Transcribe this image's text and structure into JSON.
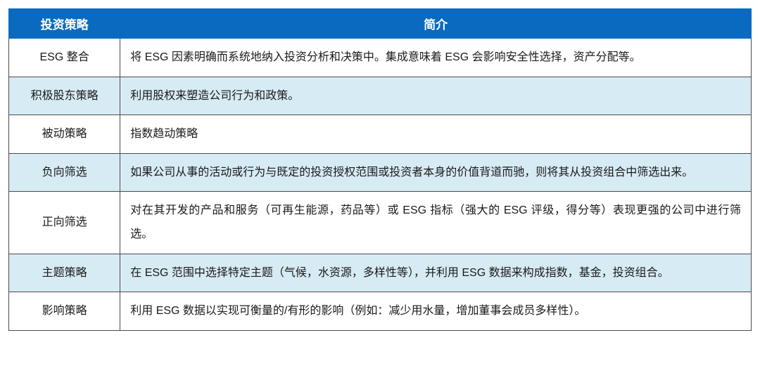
{
  "table": {
    "type": "table",
    "header_bg": "#0a6abf",
    "header_fg": "#ffffff",
    "alt_row_bg": "#d7ebf4",
    "border_color": "#4b4b4b",
    "font_size_pt": 16,
    "line_height": 2.1,
    "columns": [
      {
        "key": "strategy",
        "label": "投资策略",
        "width_pct": 15,
        "align": "center"
      },
      {
        "key": "desc",
        "label": "简介",
        "width_pct": 85,
        "align": "justify"
      }
    ],
    "rows": [
      {
        "alt": false,
        "strategy": "ESG 整合",
        "desc": "将 ESG 因素明确而系统地纳入投资分析和决策中。集成意味着 ESG 会影响安全性选择，资产分配等。"
      },
      {
        "alt": true,
        "strategy": "积极股东策略",
        "desc": "利用股权来塑造公司行为和政策。"
      },
      {
        "alt": false,
        "strategy": "被动策略",
        "desc": "指数趋动策略"
      },
      {
        "alt": true,
        "strategy": "负向筛选",
        "desc": "如果公司从事的活动或行为与既定的投资授权范围或投资者本身的价值背道而驰，则将其从投资组合中筛选出来。"
      },
      {
        "alt": false,
        "strategy": "正向筛选",
        "desc": "对在其开发的产品和服务（可再生能源，药品等）或 ESG 指标（强大的 ESG 评级，得分等）表现更强的公司中进行筛选。"
      },
      {
        "alt": true,
        "strategy": "主题策略",
        "desc": "在 ESG 范围中选择特定主题（气候，水资源，多样性等），并利用 ESG 数据来构成指数，基金，投资组合。"
      },
      {
        "alt": false,
        "strategy": "影响策略",
        "desc": "利用 ESG 数据以实现可衡量的/有形的影响（例如：减少用水量，增加董事会成员多样性）。"
      }
    ]
  }
}
